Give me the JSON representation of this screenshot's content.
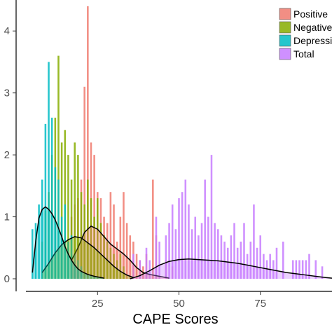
{
  "chart_data": {
    "type": "bar",
    "xlabel": "CAPE Scores",
    "ylabel": "",
    "xlim": [
      3,
      97
    ],
    "ylim": [
      0,
      4.5
    ],
    "x_ticks": [
      25,
      50,
      75
    ],
    "y_ticks": [
      0,
      1,
      2,
      3,
      4
    ],
    "grid": false,
    "legend_position": "top-right",
    "series": [
      {
        "name": "Positive",
        "color": "#f07a6e",
        "bars": [
          [
            16,
            0.6
          ],
          [
            17,
            1.0
          ],
          [
            18,
            1.2
          ],
          [
            19,
            1.3
          ],
          [
            20,
            1.6
          ],
          [
            21,
            3.1
          ],
          [
            22,
            4.4
          ],
          [
            23,
            2.2
          ],
          [
            24,
            2.0
          ],
          [
            25,
            1.4
          ],
          [
            26,
            1.3
          ],
          [
            27,
            1.0
          ],
          [
            28,
            0.9
          ],
          [
            29,
            1.4
          ],
          [
            30,
            1.2
          ],
          [
            31,
            0.6
          ],
          [
            32,
            1.0
          ],
          [
            33,
            1.4
          ],
          [
            34,
            0.9
          ],
          [
            35,
            0.7
          ],
          [
            36,
            0.6
          ],
          [
            37,
            0.4
          ],
          [
            38,
            0.3
          ],
          [
            39,
            0.2
          ],
          [
            40,
            0.4
          ],
          [
            42,
            1.6
          ],
          [
            43,
            0.7
          ],
          [
            46,
            0.3
          ],
          [
            48,
            0.2
          ]
        ],
        "density": [
          [
            17,
            0.3
          ],
          [
            19,
            0.5
          ],
          [
            21,
            0.75
          ],
          [
            23,
            0.85
          ],
          [
            25,
            0.8
          ],
          [
            27,
            0.68
          ],
          [
            29,
            0.56
          ],
          [
            31,
            0.48
          ],
          [
            33,
            0.4
          ],
          [
            35,
            0.3
          ],
          [
            37,
            0.18
          ],
          [
            39,
            0.1
          ],
          [
            41,
            0.07
          ],
          [
            43,
            0.05
          ],
          [
            45,
            0.03
          ],
          [
            47,
            0.01
          ]
        ]
      },
      {
        "name": "Negative",
        "color": "#86ad00",
        "bars": [
          [
            8,
            0.6
          ],
          [
            9,
            1.1
          ],
          [
            10,
            1.4
          ],
          [
            11,
            2.0
          ],
          [
            12,
            2.6
          ],
          [
            13,
            3.6
          ],
          [
            14,
            2.2
          ],
          [
            15,
            2.4
          ],
          [
            16,
            2.0
          ],
          [
            17,
            1.6
          ],
          [
            18,
            2.2
          ],
          [
            19,
            2.0
          ],
          [
            20,
            1.4
          ],
          [
            21,
            1.2
          ],
          [
            22,
            1.6
          ],
          [
            23,
            1.3
          ],
          [
            24,
            1.0
          ],
          [
            25,
            1.3
          ],
          [
            26,
            0.9
          ],
          [
            27,
            0.7
          ],
          [
            28,
            0.6
          ],
          [
            29,
            0.5
          ],
          [
            30,
            0.4
          ],
          [
            31,
            0.3
          ],
          [
            32,
            0.4
          ],
          [
            33,
            0.2
          ]
        ],
        "density": [
          [
            8,
            0.1
          ],
          [
            10,
            0.25
          ],
          [
            12,
            0.42
          ],
          [
            14,
            0.55
          ],
          [
            16,
            0.63
          ],
          [
            18,
            0.68
          ],
          [
            20,
            0.66
          ],
          [
            22,
            0.58
          ],
          [
            24,
            0.5
          ],
          [
            26,
            0.4
          ],
          [
            28,
            0.3
          ],
          [
            30,
            0.2
          ],
          [
            32,
            0.12
          ],
          [
            34,
            0.06
          ],
          [
            36,
            0.02
          ]
        ]
      },
      {
        "name": "Depression",
        "color": "#00bcc4",
        "bars": [
          [
            5,
            0.8
          ],
          [
            6,
            0.9
          ],
          [
            7,
            1.2
          ],
          [
            8,
            1.6
          ],
          [
            9,
            2.5
          ],
          [
            10,
            3.5
          ],
          [
            11,
            2.6
          ],
          [
            12,
            1.8
          ],
          [
            13,
            1.6
          ],
          [
            14,
            1.0
          ],
          [
            15,
            1.2
          ],
          [
            16,
            0.6
          ],
          [
            17,
            0.7
          ],
          [
            18,
            0.4
          ],
          [
            19,
            0.3
          ],
          [
            20,
            0.2
          ]
        ],
        "density": [
          [
            5,
            0.1
          ],
          [
            6,
            0.6
          ],
          [
            7,
            0.98
          ],
          [
            8,
            1.12
          ],
          [
            9,
            1.16
          ],
          [
            10,
            1.12
          ],
          [
            11,
            1.05
          ],
          [
            12,
            0.95
          ],
          [
            13,
            0.82
          ],
          [
            14,
            0.68
          ],
          [
            15,
            0.52
          ],
          [
            16,
            0.4
          ],
          [
            17,
            0.3
          ],
          [
            18,
            0.22
          ],
          [
            19,
            0.16
          ],
          [
            20,
            0.12
          ],
          [
            22,
            0.07
          ],
          [
            24,
            0.04
          ],
          [
            27,
            0.01
          ]
        ]
      },
      {
        "name": "Total",
        "color": "#c77cff",
        "bars": [
          [
            36,
            0.4
          ],
          [
            38,
            0.3
          ],
          [
            40,
            0.5
          ],
          [
            41,
            0.3
          ],
          [
            43,
            1.0
          ],
          [
            44,
            0.6
          ],
          [
            46,
            0.7
          ],
          [
            47,
            0.9
          ],
          [
            48,
            1.2
          ],
          [
            49,
            0.8
          ],
          [
            50,
            1.3
          ],
          [
            51,
            1.4
          ],
          [
            52,
            1.6
          ],
          [
            53,
            1.2
          ],
          [
            54,
            0.8
          ],
          [
            55,
            1.0
          ],
          [
            56,
            0.7
          ],
          [
            57,
            0.9
          ],
          [
            58,
            1.6
          ],
          [
            59,
            1.0
          ],
          [
            60,
            2.0
          ],
          [
            61,
            0.9
          ],
          [
            62,
            0.8
          ],
          [
            63,
            0.7
          ],
          [
            64,
            0.6
          ],
          [
            65,
            0.5
          ],
          [
            66,
            0.7
          ],
          [
            67,
            0.9
          ],
          [
            68,
            0.5
          ],
          [
            69,
            0.6
          ],
          [
            70,
            0.9
          ],
          [
            71,
            0.4
          ],
          [
            72,
            0.6
          ],
          [
            73,
            1.2
          ],
          [
            74,
            0.5
          ],
          [
            75,
            0.7
          ],
          [
            76,
            0.4
          ],
          [
            77,
            0.3
          ],
          [
            78,
            0.4
          ],
          [
            79,
            0.3
          ],
          [
            80,
            0.5
          ],
          [
            82,
            0.6
          ],
          [
            85,
            0.3
          ],
          [
            86,
            0.3
          ],
          [
            87,
            0.3
          ],
          [
            88,
            0.3
          ],
          [
            89,
            0.3
          ],
          [
            90,
            0.4
          ],
          [
            92,
            0.3
          ],
          [
            94,
            0.2
          ]
        ],
        "density": [
          [
            35,
            0.0
          ],
          [
            38,
            0.05
          ],
          [
            41,
            0.13
          ],
          [
            44,
            0.22
          ],
          [
            47,
            0.28
          ],
          [
            50,
            0.31
          ],
          [
            53,
            0.32
          ],
          [
            56,
            0.31
          ],
          [
            59,
            0.3
          ],
          [
            62,
            0.29
          ],
          [
            65,
            0.27
          ],
          [
            68,
            0.25
          ],
          [
            71,
            0.22
          ],
          [
            74,
            0.19
          ],
          [
            77,
            0.16
          ],
          [
            80,
            0.13
          ],
          [
            83,
            0.1
          ],
          [
            86,
            0.08
          ],
          [
            89,
            0.06
          ],
          [
            92,
            0.04
          ],
          [
            95,
            0.02
          ],
          [
            97,
            0.01
          ]
        ]
      }
    ]
  }
}
